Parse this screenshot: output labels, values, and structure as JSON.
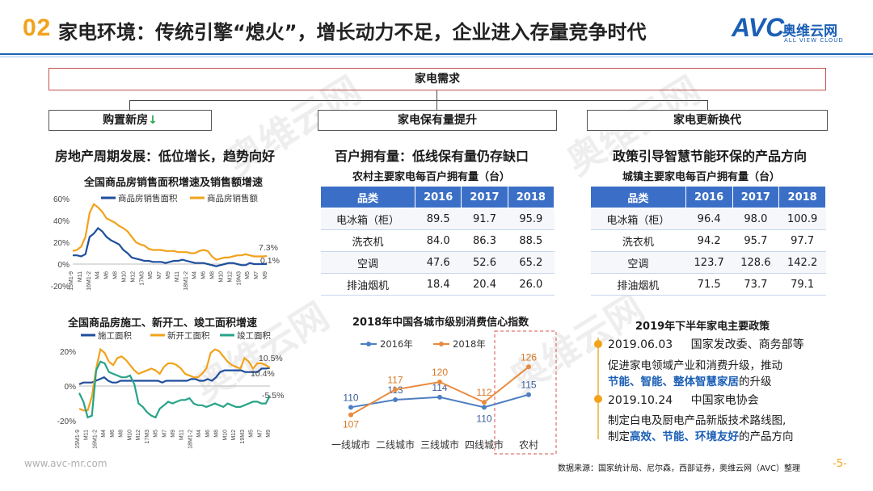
{
  "header": {
    "number": "02",
    "title": "家电环境：传统引擎“熄火”，增长动力不足，企业进入存量竞争时代",
    "logo_mark": "AVC",
    "logo_cn": "奥维云网",
    "logo_en": "ALL VIEW CLOUD"
  },
  "tree": {
    "root": "家电需求",
    "branches": [
      {
        "label": "购置新房",
        "arrow": "↓"
      },
      {
        "label": "家电保有量提升"
      },
      {
        "label": "家电更新换代"
      }
    ]
  },
  "section1": {
    "heading": "房地产周期发展：低位增长，趋势向好",
    "chart1": {
      "title": "全国商品房销售面积增速及销售额增速",
      "yticks": [
        "60%",
        "40%",
        "20%",
        "0%",
        "-20%"
      ],
      "xticks": [
        "15M1-9",
        "M11",
        "16M1-2",
        "M4",
        "M6",
        "M8",
        "M10",
        "M12",
        "17M3",
        "M5",
        "M7",
        "M9",
        "M11",
        "18M1-2",
        "M4",
        "M6",
        "M8",
        "M10",
        "M12",
        "19M3",
        "M5",
        "M7",
        "M9"
      ],
      "end_labels": [
        "7.3%",
        "0.1%"
      ]
    },
    "chart2": {
      "title": "全国商品房施工、新开工、竣工面积增速",
      "yticks": [
        "20%",
        "0%",
        "-20%"
      ],
      "xticks": [
        "15M1-9",
        "M11",
        "16M1-2",
        "M4",
        "M6",
        "M8",
        "M10",
        "M12",
        "17M3",
        "M5",
        "M7",
        "M9",
        "M11",
        "18M1-2",
        "M4",
        "M6",
        "M8",
        "M10",
        "M12",
        "19M3",
        "M5",
        "M7",
        "M9"
      ],
      "end_labels": [
        "10.5%",
        "10.4%",
        "-5.5%"
      ]
    }
  },
  "chart_data": [
    {
      "type": "line",
      "title": "全国商品房销售面积增速及销售额增速",
      "ylim": [
        -20,
        60
      ],
      "series": [
        {
          "name": "商品房销售面积",
          "color": "#1f4e9c",
          "values": [
            8,
            8,
            7,
            9,
            25,
            28,
            33,
            30,
            25,
            22,
            20,
            18,
            13,
            10,
            6,
            5,
            4,
            3,
            3,
            2,
            2,
            2,
            1,
            2,
            3,
            3,
            4,
            3,
            2,
            1,
            1,
            1,
            0,
            -1,
            -2,
            -1,
            0,
            1,
            1,
            0,
            -1,
            -1,
            1,
            0,
            0,
            0,
            0.1
          ]
        },
        {
          "name": "商品房销售额",
          "color": "#f2a21b",
          "values": [
            12,
            13,
            16,
            25,
            47,
            55,
            52,
            48,
            42,
            40,
            38,
            35,
            33,
            30,
            25,
            20,
            18,
            17,
            14,
            13,
            13,
            13,
            12,
            12,
            12,
            11,
            11,
            11,
            10,
            10,
            12,
            13,
            12,
            7,
            4,
            5,
            6,
            6,
            7,
            8,
            8,
            9,
            8,
            7,
            7,
            7,
            7.3
          ]
        }
      ]
    },
    {
      "type": "line",
      "title": "全国商品房施工、新开工、竣工面积增速",
      "ylim": [
        -25,
        25
      ],
      "series": [
        {
          "name": "施工面积",
          "color": "#1f4e9c",
          "values": [
            1,
            2,
            2,
            2,
            3,
            4,
            5,
            3,
            2,
            2,
            3,
            3,
            3,
            3,
            3,
            3,
            3,
            3,
            3,
            3,
            2,
            3,
            3,
            3,
            3,
            3,
            3,
            4,
            4,
            3,
            3,
            4,
            3,
            5,
            8,
            9,
            9,
            9,
            9,
            9,
            8,
            8,
            8,
            8,
            10,
            10,
            10.4
          ]
        },
        {
          "name": "新开工面积",
          "color": "#f2a21b",
          "values": [
            -13,
            -14,
            -14,
            -6,
            10,
            21,
            19,
            14,
            12,
            16,
            17,
            15,
            12,
            9,
            7,
            8,
            9,
            10,
            9,
            7,
            11,
            13,
            13,
            12,
            10,
            7,
            6,
            5,
            5,
            7,
            10,
            19,
            21,
            20,
            17,
            14,
            12,
            11,
            10,
            16,
            14,
            10,
            13,
            13,
            12,
            10.5
          ]
        },
        {
          "name": "竣工面积",
          "color": "#27a388",
          "values": [
            -4,
            -9,
            -18,
            -17,
            9,
            14,
            13,
            8,
            7,
            6,
            5,
            5,
            6,
            1,
            -10,
            -12,
            -15,
            -17,
            -18,
            -13,
            -11,
            -9,
            -10,
            -9,
            -8,
            -8,
            -7,
            -10,
            -11,
            -11,
            -12,
            -11,
            -10,
            -11,
            -12,
            -10,
            -11,
            -12,
            -12,
            -11,
            -10,
            -9,
            -9,
            -10,
            -10,
            -5.5
          ]
        }
      ]
    },
    {
      "type": "line",
      "title": "2018年中国各城市级别消费信心指数",
      "categories": [
        "一线城市",
        "二线城市",
        "三线城市",
        "四线城市",
        "农村"
      ],
      "series": [
        {
          "name": "2016年",
          "color": "#4e7fc2",
          "values": [
            110,
            113,
            114,
            110,
            115
          ]
        },
        {
          "name": "2018年",
          "color": "#e98a3e",
          "values": [
            107,
            117,
            120,
            112,
            126
          ]
        }
      ]
    },
    {
      "type": "table",
      "title": "农村主要家电每百户拥有量（台）",
      "columns": [
        "品类",
        "2016",
        "2017",
        "2018"
      ],
      "rows": [
        [
          "电冰箱（柜）",
          "89.5",
          "91.7",
          "95.9"
        ],
        [
          "洗衣机",
          "84.0",
          "86.3",
          "88.5"
        ],
        [
          "空调",
          "47.6",
          "52.6",
          "65.2"
        ],
        [
          "排油烟机",
          "18.4",
          "20.4",
          "26.0"
        ]
      ]
    },
    {
      "type": "table",
      "title": "城镇主要家电每百户拥有量（台）",
      "columns": [
        "品类",
        "2016",
        "2017",
        "2018"
      ],
      "rows": [
        [
          "电冰箱（柜）",
          "96.4",
          "98.0",
          "100.9"
        ],
        [
          "洗衣机",
          "94.2",
          "95.7",
          "97.7"
        ],
        [
          "空调",
          "123.7",
          "128.6",
          "142.2"
        ],
        [
          "排油烟机",
          "71.5",
          "73.7",
          "79.1"
        ]
      ]
    }
  ],
  "section2": {
    "heading": "百户拥有量：低线保有量仍存缺口",
    "table_title": "农村主要家电每百户拥有量（台）",
    "columns": [
      "品类",
      "2016",
      "2017",
      "2018"
    ],
    "rows": [
      [
        "电冰箱（柜）",
        "89.5",
        "91.7",
        "95.9"
      ],
      [
        "洗衣机",
        "84.0",
        "86.3",
        "88.5"
      ],
      [
        "空调",
        "47.6",
        "52.6",
        "65.2"
      ],
      [
        "排油烟机",
        "18.4",
        "20.4",
        "26.0"
      ]
    ],
    "chart_title": "2018年中国各城市级别消费信心指数",
    "legend": [
      "2016年",
      "2018年"
    ],
    "categories": [
      "一线城市",
      "二线城市",
      "三线城市",
      "四线城市",
      "农村"
    ]
  },
  "section3": {
    "heading": "政策引导智慧节能环保的产品方向",
    "table_title": "城镇主要家电每百户拥有量（台）",
    "columns": [
      "品类",
      "2016",
      "2017",
      "2018"
    ],
    "rows": [
      [
        "电冰箱（柜）",
        "96.4",
        "98.0",
        "100.9"
      ],
      [
        "洗衣机",
        "94.2",
        "95.7",
        "97.7"
      ],
      [
        "空调",
        "123.7",
        "128.6",
        "142.2"
      ],
      [
        "排油烟机",
        "71.5",
        "73.7",
        "79.1"
      ]
    ],
    "policy_title": "2019年下半年家电主要政策",
    "policies": [
      {
        "date": "2019.06.03",
        "org": "国家发改委、商务部等",
        "line1": "促进家电领域产业和消费升级，推动",
        "hl": [
          "节能",
          "智能",
          "整体智慧家居"
        ],
        "seps": [
          "、",
          "、"
        ],
        "tail": "的升级"
      },
      {
        "date": "2019.10.24",
        "org": "中国家电协会",
        "line1": "制定白电及厨电产品新版技术路线图,",
        "pre": "制定",
        "hl": [
          "高效",
          "节能",
          "环境友好"
        ],
        "seps": [
          "、",
          "、"
        ],
        "tail": "的产品方向"
      }
    ]
  },
  "footer": {
    "website": "www.avc-mr.com",
    "source": "数据来源：国家统计局、尼尔森，西部证券，奥维云网（AVC）整理",
    "page": "-5-"
  },
  "watermark": "奥维云网"
}
